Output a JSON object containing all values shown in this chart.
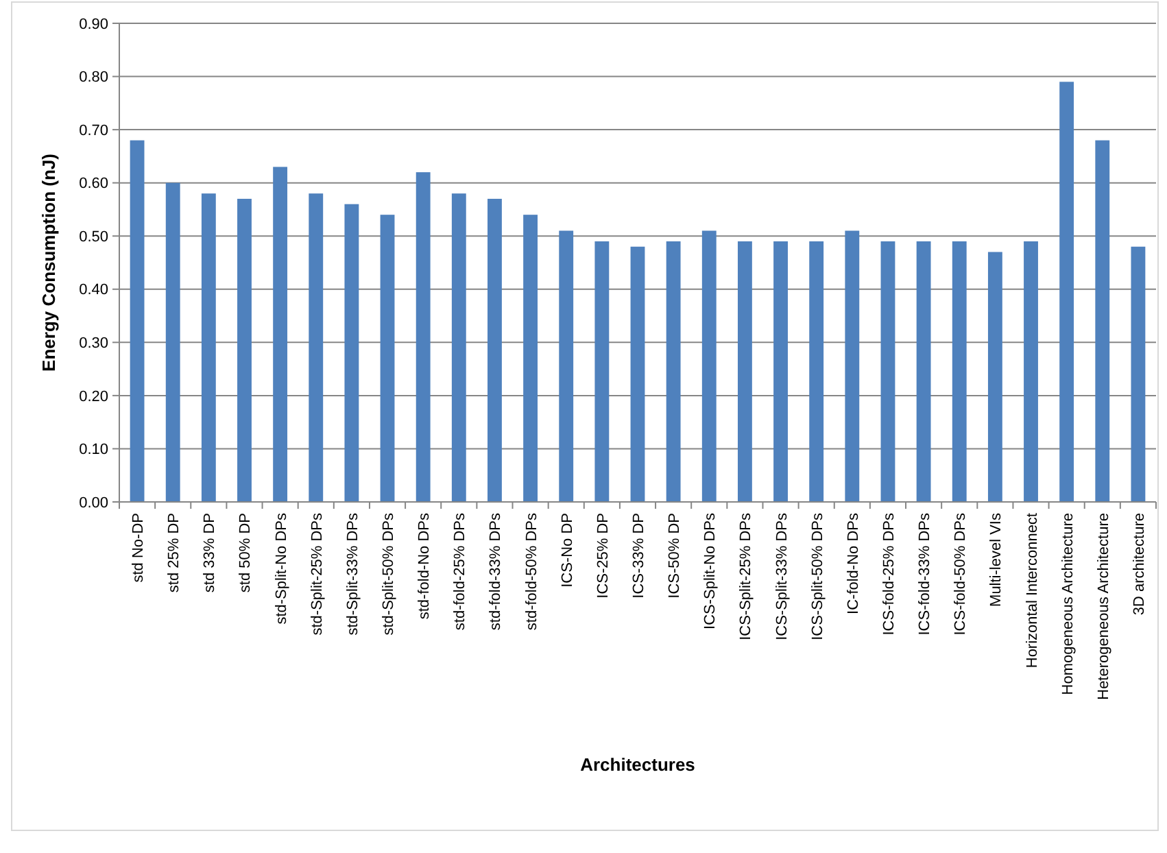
{
  "chart_data": {
    "type": "bar",
    "xlabel": "Architectures",
    "ylabel": "Energy Consumption (nJ)",
    "categories": [
      "std No-DP",
      "std 25% DP",
      "std 33% DP",
      "std 50% DP",
      "std-Split-No DPs",
      "std-Split-25% DPs",
      "std-Split-33% DPs",
      "std-Split-50% DPs",
      "std-fold-No DPs",
      "std-fold-25% DPs",
      "std-fold-33% DPs",
      "std-fold-50% DPs",
      "ICS-No DP",
      "ICS-25% DP",
      "ICS-33% DP",
      "ICS-50% DP",
      "ICS-Split-No DPs",
      "ICS-Split-25% DPs",
      "ICS-Split-33% DPs",
      "ICS-Split-50% DPs",
      "IC-fold-No DPs",
      "ICS-fold-25% DPs",
      "ICS-fold-33% DPs",
      "ICS-fold-50% DPs",
      "Multi-level VIs",
      "Horizontal Interconnect",
      "Homogeneous Architecture",
      "Heterogeneous Architecture",
      "3D architecture"
    ],
    "values": [
      0.68,
      0.6,
      0.58,
      0.57,
      0.63,
      0.58,
      0.56,
      0.54,
      0.62,
      0.58,
      0.57,
      0.54,
      0.51,
      0.49,
      0.48,
      0.49,
      0.51,
      0.49,
      0.49,
      0.49,
      0.51,
      0.49,
      0.49,
      0.49,
      0.47,
      0.49,
      0.79,
      0.68,
      0.48
    ],
    "color": "#4f81bd",
    "ylim": [
      0,
      0.9
    ],
    "yticks": [
      {
        "value": 0,
        "label": "0.00"
      },
      {
        "value": 0.1,
        "label": "0.10"
      },
      {
        "value": 0.2,
        "label": "0.20"
      },
      {
        "value": 0.3,
        "label": "0.30"
      },
      {
        "value": 0.4,
        "label": "0.40"
      },
      {
        "value": 0.5,
        "label": "0.50"
      },
      {
        "value": 0.6,
        "label": "0.60"
      },
      {
        "value": 0.7,
        "label": "0.70"
      },
      {
        "value": 0.8,
        "label": "0.80"
      },
      {
        "value": 0.9,
        "label": "0.90"
      }
    ],
    "grid": "y"
  }
}
